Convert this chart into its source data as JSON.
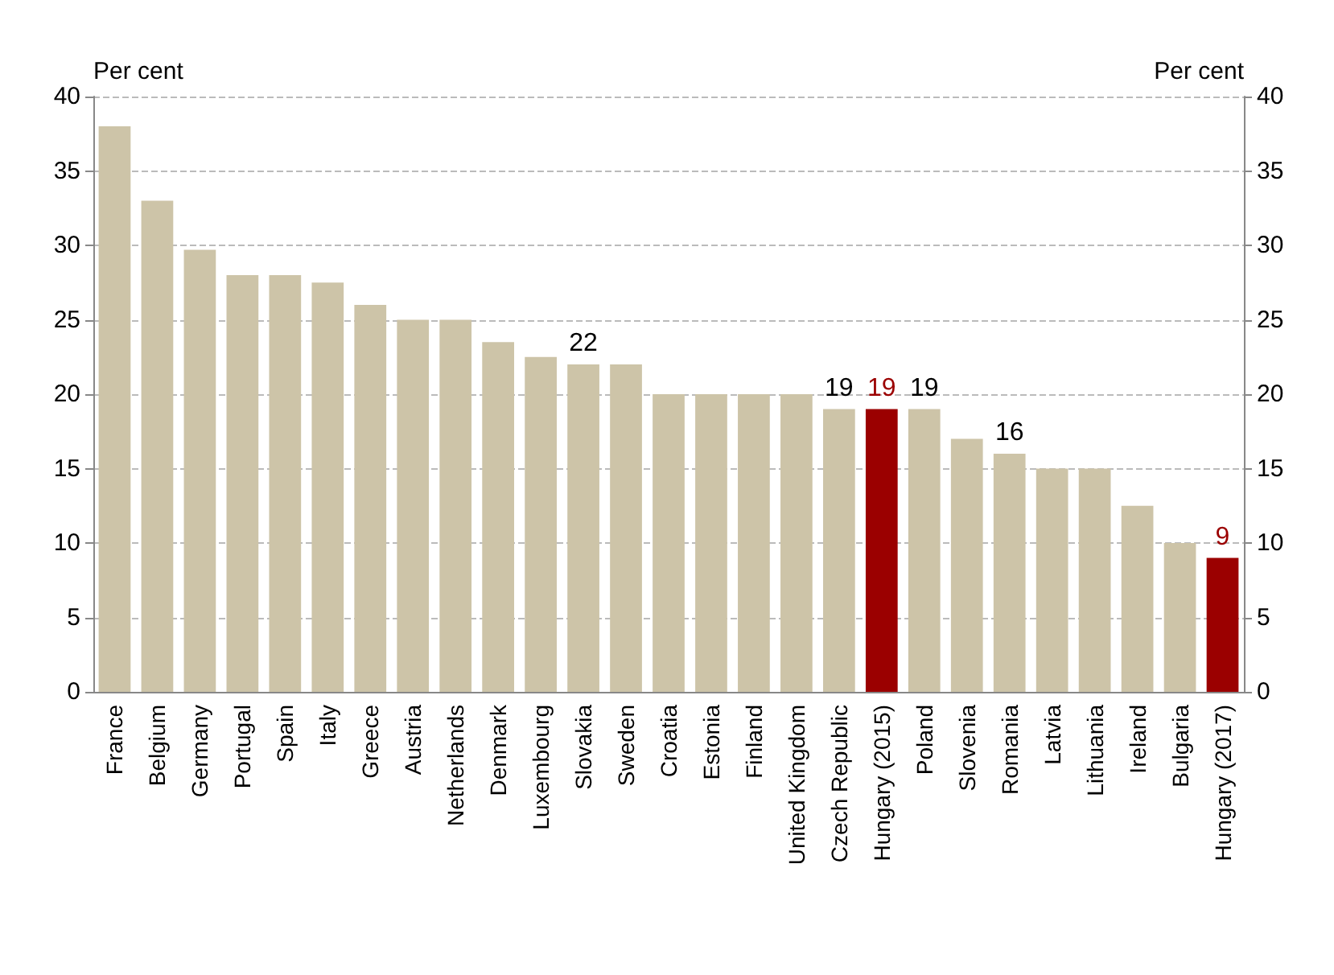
{
  "chart_data": {
    "type": "bar",
    "ylabel": "Per cent",
    "y2label": "Per cent",
    "categories": [
      "France",
      "Belgium",
      "Germany",
      "Portugal",
      "Spain",
      "Italy",
      "Greece",
      "Austria",
      "Netherlands",
      "Denmark",
      "Luxembourg",
      "Slovakia",
      "Sweden",
      "Croatia",
      "Estonia",
      "Finland",
      "United Kingdom",
      "Czech Republic",
      "Hungary (2015)",
      "Poland",
      "Slovenia",
      "Romania",
      "Latvia",
      "Lithuania",
      "Ireland",
      "Bulgaria",
      "Hungary (2017)"
    ],
    "values": [
      38,
      33,
      29.7,
      28,
      28,
      27.5,
      26,
      25,
      25,
      23.5,
      22.5,
      22,
      22,
      20,
      20,
      20,
      20,
      19,
      19,
      19,
      17,
      16,
      15,
      15,
      12.5,
      10,
      9
    ],
    "colors": [
      "#cdc4a8",
      "#cdc4a8",
      "#cdc4a8",
      "#cdc4a8",
      "#cdc4a8",
      "#cdc4a8",
      "#cdc4a8",
      "#cdc4a8",
      "#cdc4a8",
      "#cdc4a8",
      "#cdc4a8",
      "#cdc4a8",
      "#cdc4a8",
      "#cdc4a8",
      "#cdc4a8",
      "#cdc4a8",
      "#cdc4a8",
      "#cdc4a8",
      "#9b0000",
      "#cdc4a8",
      "#cdc4a8",
      "#cdc4a8",
      "#cdc4a8",
      "#cdc4a8",
      "#cdc4a8",
      "#cdc4a8",
      "#9b0000"
    ],
    "value_labels": [
      null,
      null,
      null,
      null,
      null,
      null,
      null,
      null,
      null,
      null,
      null,
      "22",
      null,
      null,
      null,
      null,
      null,
      "19",
      "19",
      "19",
      null,
      "16",
      null,
      null,
      null,
      null,
      "9"
    ],
    "ylim": [
      0,
      40
    ],
    "yticks": [
      0,
      5,
      10,
      15,
      20,
      25,
      30,
      35,
      40
    ],
    "y2lim": [
      0,
      40
    ],
    "y2ticks": [
      0,
      5,
      10,
      15,
      20,
      25,
      30,
      35,
      40
    ],
    "grid": "y"
  }
}
